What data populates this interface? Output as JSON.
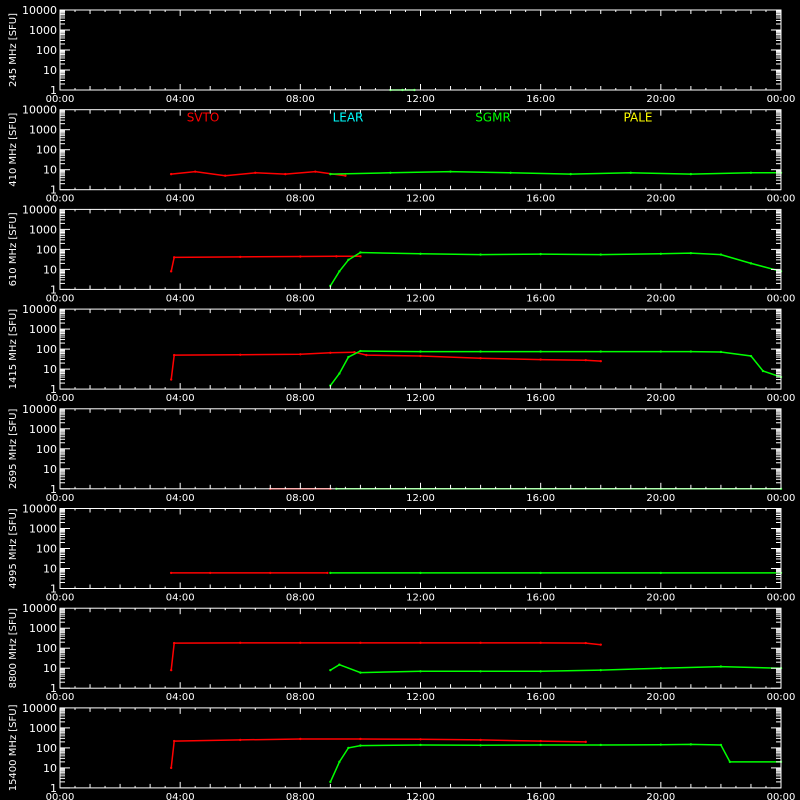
{
  "chart_data": {
    "type": "line",
    "x_unit": "UT hours",
    "xlim": [
      0,
      24
    ],
    "x_ticks": [
      "00:00",
      "04:00",
      "08:00",
      "12:00",
      "16:00",
      "20:00",
      "00:00"
    ],
    "y_ticks": [
      "10000",
      "1000",
      "100",
      "10",
      "1"
    ],
    "ylim": [
      1,
      10000
    ],
    "y_scale": "log",
    "ylabel_unit": "[SFU]",
    "legend": [
      {
        "name": "SVTO",
        "color": "#ff0000"
      },
      {
        "name": "LEAR",
        "color": "#00ffff"
      },
      {
        "name": "SGMR",
        "color": "#00ff00"
      },
      {
        "name": "PALE",
        "color": "#ffff00"
      }
    ],
    "colors": {
      "SVTO": "#ff0000",
      "SGMR": "#00ff00",
      "axes": "#ffffff",
      "background": "#000000"
    },
    "panels": [
      {
        "freq": "245",
        "ylabel": "245 MHz",
        "series": [
          {
            "name": "SGMR",
            "x": [
              11.0,
              11.4,
              11.8
            ],
            "y": [
              1,
              1,
              1
            ]
          }
        ]
      },
      {
        "freq": "410",
        "ylabel": "410 MHz",
        "series": [
          {
            "name": "SVTO",
            "x": [
              3.7,
              4.5,
              5.5,
              6.5,
              7.5,
              8.5,
              9.5
            ],
            "y": [
              6,
              8,
              5,
              7,
              6,
              8,
              5
            ]
          },
          {
            "name": "SGMR",
            "x": [
              9.0,
              11,
              13,
              15,
              17,
              19,
              21,
              23,
              24
            ],
            "y": [
              6,
              7,
              8,
              7,
              6,
              7,
              6,
              7,
              7
            ]
          }
        ]
      },
      {
        "freq": "610",
        "ylabel": "610 MHz",
        "series": [
          {
            "name": "SVTO",
            "x": [
              3.7,
              3.8,
              6,
              8,
              9.2,
              10.0
            ],
            "y": [
              8,
              40,
              42,
              44,
              45,
              45
            ]
          },
          {
            "name": "SGMR",
            "x": [
              9.0,
              9.3,
              9.6,
              10.0,
              12,
              14,
              16,
              18,
              20,
              21,
              22,
              23,
              24
            ],
            "y": [
              1.5,
              8,
              30,
              70,
              60,
              55,
              58,
              55,
              60,
              65,
              55,
              20,
              8
            ]
          }
        ]
      },
      {
        "freq": "1415",
        "ylabel": "1415 MHz",
        "series": [
          {
            "name": "SVTO",
            "x": [
              3.7,
              3.8,
              6,
              8,
              9.0,
              9.8,
              10.2,
              12,
              14,
              16,
              17.5,
              18.0
            ],
            "y": [
              3,
              50,
              52,
              55,
              65,
              70,
              50,
              45,
              35,
              30,
              28,
              25
            ]
          },
          {
            "name": "SGMR",
            "x": [
              9.0,
              9.3,
              9.6,
              10.0,
              12,
              14,
              16,
              18,
              20,
              21,
              22,
              23,
              23.4,
              24
            ],
            "y": [
              1.5,
              6,
              40,
              80,
              75,
              75,
              75,
              75,
              75,
              75,
              72,
              45,
              8,
              4
            ]
          }
        ]
      },
      {
        "freq": "2695",
        "ylabel": "2695 MHz",
        "series": [
          {
            "name": "SVTO",
            "x": [
              7.0,
              9.0
            ],
            "y": [
              1,
              1
            ]
          },
          {
            "name": "SGMR",
            "x": [
              9.2,
              12,
              16,
              20,
              24
            ],
            "y": [
              1,
              1,
              1,
              1,
              1
            ]
          }
        ]
      },
      {
        "freq": "4995",
        "ylabel": "4995 MHz",
        "series": [
          {
            "name": "SVTO",
            "x": [
              3.7,
              5,
              7,
              8.9
            ],
            "y": [
              6,
              6,
              6,
              6
            ]
          },
          {
            "name": "SGMR",
            "x": [
              9.0,
              12,
              16,
              20,
              24
            ],
            "y": [
              6,
              6,
              6,
              6,
              6
            ]
          }
        ]
      },
      {
        "freq": "8800",
        "ylabel": "8800 MHz",
        "series": [
          {
            "name": "SVTO",
            "x": [
              3.7,
              3.8,
              6,
              8,
              10,
              12,
              14,
              16,
              17.5,
              18.0
            ],
            "y": [
              8,
              180,
              185,
              185,
              185,
              185,
              185,
              185,
              180,
              150
            ]
          },
          {
            "name": "SGMR",
            "x": [
              9.0,
              9.3,
              10,
              12,
              14,
              16,
              18,
              20,
              22,
              24
            ],
            "y": [
              8,
              15,
              6,
              7,
              7,
              7,
              8,
              10,
              12,
              10
            ]
          }
        ]
      },
      {
        "freq": "15400",
        "ylabel": "15400 MHz",
        "series": [
          {
            "name": "SVTO",
            "x": [
              3.7,
              3.8,
              6,
              8,
              10,
              12,
              14,
              16,
              17.5
            ],
            "y": [
              10,
              220,
              250,
              280,
              280,
              270,
              250,
              220,
              200
            ]
          },
          {
            "name": "SGMR",
            "x": [
              9.0,
              9.3,
              9.6,
              10.0,
              12,
              14,
              16,
              18,
              20,
              21,
              22,
              22.3,
              24
            ],
            "y": [
              2,
              20,
              100,
              130,
              140,
              135,
              140,
              140,
              145,
              150,
              140,
              20,
              20
            ]
          }
        ]
      }
    ]
  }
}
